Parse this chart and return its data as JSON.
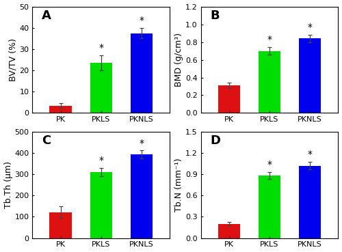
{
  "panels": [
    {
      "label": "A",
      "ylabel": "BV/TV (%)",
      "ylim": [
        0,
        50
      ],
      "yticks": [
        0,
        10,
        20,
        30,
        40,
        50
      ],
      "categories": [
        "PK",
        "PKLS",
        "PKNLS"
      ],
      "values": [
        3.5,
        23.5,
        37.5
      ],
      "errors": [
        1.0,
        3.5,
        2.5
      ],
      "star": [
        false,
        true,
        true
      ],
      "colors": [
        "#dd1111",
        "#00dd00",
        "#0000ee"
      ]
    },
    {
      "label": "B",
      "ylabel": "BMD (g/cm³)",
      "ylim": [
        0,
        1.2
      ],
      "yticks": [
        0.0,
        0.2,
        0.4,
        0.6,
        0.8,
        1.0,
        1.2
      ],
      "categories": [
        "PK",
        "PKLS",
        "PKNLS"
      ],
      "values": [
        0.31,
        0.7,
        0.84
      ],
      "errors": [
        0.03,
        0.04,
        0.04
      ],
      "star": [
        false,
        true,
        true
      ],
      "colors": [
        "#dd1111",
        "#00dd00",
        "#0000ee"
      ]
    },
    {
      "label": "C",
      "ylabel": "Tb.Th (μm)",
      "ylim": [
        0,
        500
      ],
      "yticks": [
        0,
        100,
        200,
        300,
        400,
        500
      ],
      "categories": [
        "PK",
        "PKLS",
        "PKNLS"
      ],
      "values": [
        122,
        310,
        393
      ],
      "errors": [
        28,
        20,
        18
      ],
      "star": [
        false,
        true,
        true
      ],
      "colors": [
        "#dd1111",
        "#00dd00",
        "#0000ee"
      ]
    },
    {
      "label": "D",
      "ylabel": "Tb.N (mm⁻¹)",
      "ylim": [
        0,
        1.5
      ],
      "yticks": [
        0.0,
        0.3,
        0.6,
        0.9,
        1.2,
        1.5
      ],
      "categories": [
        "PK",
        "PKLS",
        "PKNLS"
      ],
      "values": [
        0.2,
        0.88,
        1.02
      ],
      "errors": [
        0.025,
        0.05,
        0.055
      ],
      "star": [
        false,
        true,
        true
      ],
      "colors": [
        "#dd1111",
        "#00dd00",
        "#0000ee"
      ]
    }
  ],
  "background_color": "#ffffff",
  "bar_width": 0.55,
  "ylabel_fontsize": 9,
  "tick_fontsize": 8,
  "star_fontsize": 10,
  "label_fontsize": 13
}
